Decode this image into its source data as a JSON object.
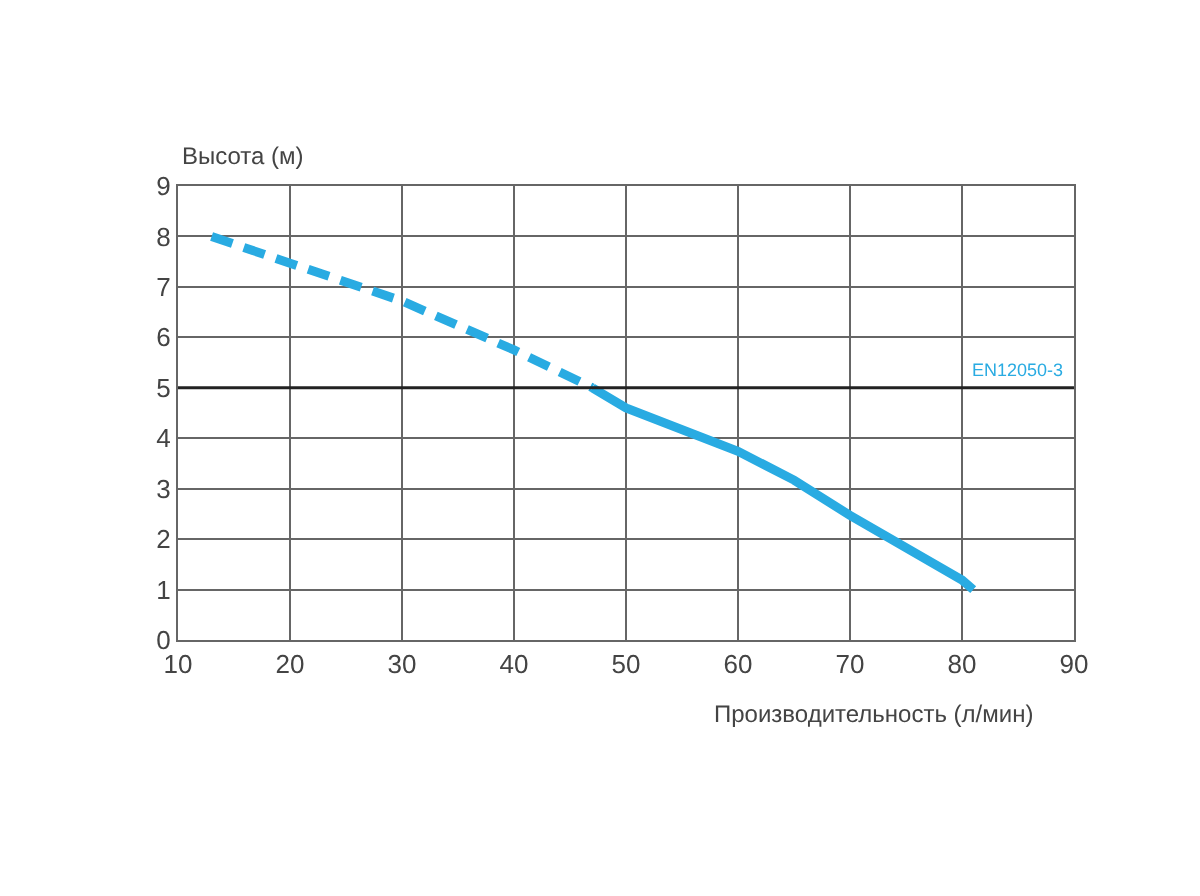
{
  "chart_data": {
    "type": "line",
    "ylabel": "Высота (м)",
    "xlabel": "Производительность (л/мин)",
    "xlim": [
      10,
      90
    ],
    "xticks": [
      10,
      20,
      30,
      40,
      50,
      60,
      70,
      80,
      90
    ],
    "ylim": [
      0,
      9
    ],
    "yticks": [
      0,
      1,
      2,
      3,
      4,
      5,
      6,
      7,
      8,
      9
    ],
    "grid": true,
    "marker": "none",
    "series": [
      {
        "color": "#29abe2",
        "line_style": "dashed",
        "x": [
          13,
          20,
          30,
          40,
          47
        ],
        "values": [
          8.0,
          7.47,
          6.72,
          5.75,
          5.0
        ]
      },
      {
        "color": "#29abe2",
        "line_style": "solid",
        "x": [
          47,
          50,
          60,
          65,
          70,
          80,
          81
        ],
        "values": [
          5.0,
          4.6,
          3.74,
          3.17,
          2.47,
          1.19,
          1.0
        ]
      }
    ],
    "ref_lines": [
      {
        "axis": "y",
        "value": 5,
        "label": "EN12050-3",
        "color": "#222222",
        "line_style": "solid"
      }
    ]
  }
}
